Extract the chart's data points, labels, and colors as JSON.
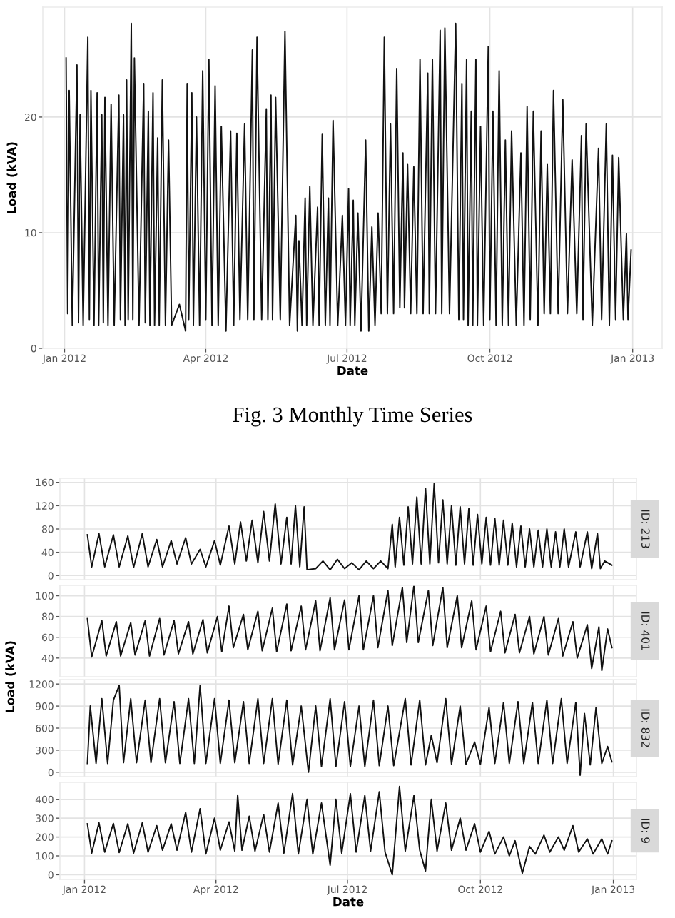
{
  "chart_data": [
    {
      "type": "line",
      "xlabel": "Date",
      "ylabel": "Load (kVA)",
      "annotations": [
        "Fig. 3 Monthly Time Series"
      ],
      "xlim": [
        "2011-12-18",
        "2013-01-20"
      ],
      "ylim": [
        0,
        29.5
      ],
      "yticks": [
        0,
        10,
        20
      ],
      "xticks": [
        {
          "value": "2012-01-01",
          "label": "Jan 2012"
        },
        {
          "value": "2012-04-01",
          "label": "Apr 2012"
        },
        {
          "value": "2012-07-01",
          "label": "Jul 2012"
        },
        {
          "value": "2012-10-01",
          "label": "Oct 2012"
        },
        {
          "value": "2013-01-01",
          "label": "Jan 2013"
        }
      ],
      "grid": true,
      "x": [
        "2012-01-02",
        "2012-01-03",
        "2012-01-04",
        "2012-01-06",
        "2012-01-09",
        "2012-01-10",
        "2012-01-11",
        "2012-01-13",
        "2012-01-16",
        "2012-01-17",
        "2012-01-18",
        "2012-01-20",
        "2012-01-22",
        "2012-01-23",
        "2012-01-25",
        "2012-01-26",
        "2012-01-27",
        "2012-01-29",
        "2012-01-31",
        "2012-02-02",
        "2012-02-05",
        "2012-02-06",
        "2012-02-08",
        "2012-02-09",
        "2012-02-10",
        "2012-02-11",
        "2012-02-13",
        "2012-02-14",
        "2012-02-15",
        "2012-02-18",
        "2012-02-21",
        "2012-02-22",
        "2012-02-24",
        "2012-02-25",
        "2012-02-27",
        "2012-02-28",
        "2012-03-01",
        "2012-03-02",
        "2012-03-04",
        "2012-03-06",
        "2012-03-08",
        "2012-03-10",
        "2012-03-15",
        "2012-03-19",
        "2012-03-20",
        "2012-03-21",
        "2012-03-23",
        "2012-03-24",
        "2012-03-26",
        "2012-03-28",
        "2012-03-30",
        "2012-04-01",
        "2012-04-03",
        "2012-04-05",
        "2012-04-07",
        "2012-04-09",
        "2012-04-11",
        "2012-04-14",
        "2012-04-17",
        "2012-04-19",
        "2012-04-21",
        "2012-04-23",
        "2012-04-26",
        "2012-04-28",
        "2012-05-01",
        "2012-05-02",
        "2012-05-04",
        "2012-05-07",
        "2012-05-10",
        "2012-05-11",
        "2012-05-13",
        "2012-05-14",
        "2012-05-16",
        "2012-05-19",
        "2012-05-22",
        "2012-05-25",
        "2012-05-29",
        "2012-05-30",
        "2012-05-31",
        "2012-06-02",
        "2012-06-04",
        "2012-06-05",
        "2012-06-07",
        "2012-06-09",
        "2012-06-12",
        "2012-06-13",
        "2012-06-15",
        "2012-06-17",
        "2012-06-19",
        "2012-06-20",
        "2012-06-22",
        "2012-06-25",
        "2012-06-28",
        "2012-06-30",
        "2012-07-02",
        "2012-07-03",
        "2012-07-05",
        "2012-07-06",
        "2012-07-08",
        "2012-07-10",
        "2012-07-13",
        "2012-07-15",
        "2012-07-17",
        "2012-07-19",
        "2012-07-21",
        "2012-07-23",
        "2012-07-25",
        "2012-07-27",
        "2012-07-29",
        "2012-07-31",
        "2012-08-02",
        "2012-08-04",
        "2012-08-06",
        "2012-08-07",
        "2012-08-09",
        "2012-08-11",
        "2012-08-13",
        "2012-08-15",
        "2012-08-17",
        "2012-08-19",
        "2012-08-22",
        "2012-08-23",
        "2012-08-25",
        "2012-08-27",
        "2012-08-30",
        "2012-08-31",
        "2012-09-02",
        "2012-09-05",
        "2012-09-09",
        "2012-09-11",
        "2012-09-13",
        "2012-09-14",
        "2012-09-16",
        "2012-09-17",
        "2012-09-19",
        "2012-09-20",
        "2012-09-22",
        "2012-09-23",
        "2012-09-25",
        "2012-09-27",
        "2012-09-30",
        "2012-10-01",
        "2012-10-03",
        "2012-10-05",
        "2012-10-07",
        "2012-10-09",
        "2012-10-11",
        "2012-10-13",
        "2012-10-15",
        "2012-10-18",
        "2012-10-21",
        "2012-10-23",
        "2012-10-25",
        "2012-10-27",
        "2012-10-29",
        "2012-11-01",
        "2012-11-03",
        "2012-11-05",
        "2012-11-07",
        "2012-11-09",
        "2012-11-11",
        "2012-11-14",
        "2012-11-17",
        "2012-11-20",
        "2012-11-23",
        "2012-11-26",
        "2012-11-29",
        "2012-11-30",
        "2012-12-02",
        "2012-12-06",
        "2012-12-10",
        "2012-12-12",
        "2012-12-15",
        "2012-12-17",
        "2012-12-19",
        "2012-12-21",
        "2012-12-23",
        "2012-12-26",
        "2012-12-28",
        "2012-12-29",
        "2012-12-31"
      ],
      "series": [
        {
          "color": "#111111",
          "values": [
            25.1,
            3.0,
            22.3,
            2.0,
            24.5,
            2.2,
            20.2,
            2.0,
            26.9,
            2.5,
            22.3,
            2.0,
            22.1,
            2.0,
            20.2,
            2.2,
            21.7,
            2.0,
            21.1,
            2.0,
            21.9,
            2.5,
            20.2,
            2.0,
            23.2,
            2.5,
            28.1,
            2.5,
            25.1,
            2.0,
            22.9,
            2.2,
            20.5,
            2.0,
            22.1,
            2.0,
            18.2,
            2.0,
            23.2,
            2.0,
            18.0,
            2.0,
            3.8,
            1.5,
            22.9,
            2.5,
            22.1,
            2.0,
            20.0,
            2.0,
            24.0,
            2.5,
            25.0,
            2.0,
            22.7,
            2.0,
            19.2,
            1.5,
            18.8,
            2.0,
            18.6,
            2.5,
            19.4,
            2.5,
            25.8,
            2.5,
            26.9,
            2.5,
            20.7,
            2.5,
            21.9,
            2.5,
            21.7,
            2.5,
            27.4,
            2.0,
            11.5,
            1.5,
            9.3,
            2.0,
            13.0,
            2.0,
            14.0,
            2.0,
            12.2,
            2.0,
            18.5,
            2.0,
            13.0,
            2.0,
            19.7,
            2.0,
            11.5,
            2.0,
            13.8,
            2.0,
            12.8,
            2.0,
            11.7,
            1.5,
            18.0,
            1.5,
            10.5,
            2.0,
            11.7,
            3.0,
            26.9,
            3.0,
            19.4,
            3.0,
            24.2,
            3.5,
            16.9,
            3.5,
            15.9,
            3.0,
            15.7,
            3.0,
            25.0,
            3.0,
            23.8,
            3.0,
            25.0,
            3.0,
            27.5,
            3.0,
            27.7,
            3.0,
            28.1,
            2.5,
            22.9,
            2.5,
            25.0,
            2.0,
            20.5,
            2.0,
            25.0,
            2.0,
            19.2,
            2.0,
            26.1,
            2.5,
            20.5,
            2.0,
            24.0,
            2.0,
            18.0,
            2.0,
            18.8,
            2.0,
            16.9,
            2.0,
            20.9,
            2.5,
            20.5,
            2.0,
            18.8,
            3.0,
            15.9,
            3.0,
            22.3,
            3.0,
            21.5,
            3.0,
            16.3,
            3.0,
            18.4,
            2.5,
            19.4,
            2.0,
            17.3,
            2.5,
            19.4,
            2.0,
            16.7,
            2.5,
            16.5,
            2.5,
            9.9,
            2.5,
            8.5
          ]
        }
      ]
    },
    {
      "type": "line",
      "title": "ID: 213",
      "tick_labels": "y",
      "xlim": [
        "2011-12-15",
        "2013-01-17"
      ],
      "ylim": [
        -7,
        167
      ],
      "yticks": [
        0,
        40,
        80,
        120,
        160
      ],
      "xticks": [
        {
          "value": "2012-01-01",
          "label": null
        },
        {
          "value": "2012-04-01",
          "label": null
        },
        {
          "value": "2012-07-01",
          "label": null
        },
        {
          "value": "2012-10-01",
          "label": null
        },
        {
          "value": "2013-01-01",
          "label": null
        }
      ],
      "grid": true,
      "x": [
        "2012-01-03",
        "2012-01-06",
        "2012-01-11",
        "2012-01-15",
        "2012-01-21",
        "2012-01-25",
        "2012-01-31",
        "2012-02-04",
        "2012-02-10",
        "2012-02-14",
        "2012-02-20",
        "2012-02-24",
        "2012-03-01",
        "2012-03-05",
        "2012-03-11",
        "2012-03-15",
        "2012-03-21",
        "2012-03-25",
        "2012-03-31",
        "2012-04-04",
        "2012-04-10",
        "2012-04-14",
        "2012-04-18",
        "2012-04-22",
        "2012-04-26",
        "2012-04-30",
        "2012-05-04",
        "2012-05-08",
        "2012-05-12",
        "2012-05-16",
        "2012-05-20",
        "2012-05-23",
        "2012-05-26",
        "2012-05-29",
        "2012-06-01",
        "2012-06-03",
        "2012-06-09",
        "2012-06-14",
        "2012-06-19",
        "2012-06-24",
        "2012-06-29",
        "2012-07-04",
        "2012-07-09",
        "2012-07-14",
        "2012-07-19",
        "2012-07-24",
        "2012-07-29",
        "2012-08-01",
        "2012-08-03",
        "2012-08-06",
        "2012-08-09",
        "2012-08-12",
        "2012-08-15",
        "2012-08-18",
        "2012-08-21",
        "2012-08-24",
        "2012-08-27",
        "2012-08-30",
        "2012-09-02",
        "2012-09-05",
        "2012-09-08",
        "2012-09-11",
        "2012-09-14",
        "2012-09-17",
        "2012-09-20",
        "2012-09-23",
        "2012-09-26",
        "2012-09-29",
        "2012-10-02",
        "2012-10-05",
        "2012-10-08",
        "2012-10-11",
        "2012-10-14",
        "2012-10-17",
        "2012-10-20",
        "2012-10-23",
        "2012-10-26",
        "2012-10-29",
        "2012-11-01",
        "2012-11-04",
        "2012-11-07",
        "2012-11-10",
        "2012-11-13",
        "2012-11-16",
        "2012-11-19",
        "2012-11-22",
        "2012-11-25",
        "2012-11-28",
        "2012-12-01",
        "2012-12-06",
        "2012-12-09",
        "2012-12-14",
        "2012-12-17",
        "2012-12-21",
        "2012-12-23",
        "2012-12-26",
        "2012-12-31"
      ],
      "series": [
        {
          "color": "#111111",
          "values": [
            70,
            15,
            72,
            15,
            70,
            15,
            68,
            14,
            72,
            15,
            62,
            15,
            60,
            20,
            65,
            20,
            45,
            15,
            60,
            18,
            85,
            20,
            92,
            25,
            95,
            22,
            110,
            25,
            123,
            20,
            100,
            20,
            120,
            15,
            118,
            10,
            12,
            25,
            10,
            28,
            12,
            22,
            10,
            25,
            12,
            25,
            12,
            88,
            15,
            100,
            18,
            118,
            20,
            135,
            20,
            150,
            20,
            158,
            22,
            130,
            20,
            120,
            18,
            118,
            20,
            115,
            18,
            105,
            20,
            100,
            18,
            98,
            18,
            95,
            18,
            90,
            15,
            85,
            15,
            80,
            15,
            78,
            15,
            80,
            15,
            75,
            15,
            80,
            15,
            75,
            15,
            75,
            12,
            72,
            12,
            25,
            18
          ]
        }
      ]
    },
    {
      "type": "line",
      "title": "ID: 401",
      "ylabel": "Load (kVA)",
      "tick_labels": "y",
      "xlim": [
        "2011-12-15",
        "2013-01-17"
      ],
      "ylim": [
        22,
        110
      ],
      "yticks": [
        40,
        60,
        80,
        100
      ],
      "xticks": [
        {
          "value": "2012-01-01",
          "label": null
        },
        {
          "value": "2012-04-01",
          "label": null
        },
        {
          "value": "2012-07-01",
          "label": null
        },
        {
          "value": "2012-10-01",
          "label": null
        },
        {
          "value": "2013-01-01",
          "label": null
        }
      ],
      "grid": true,
      "x": [
        "2012-01-03",
        "2012-01-06",
        "2012-01-13",
        "2012-01-16",
        "2012-01-23",
        "2012-01-26",
        "2012-02-02",
        "2012-02-05",
        "2012-02-12",
        "2012-02-15",
        "2012-02-22",
        "2012-02-25",
        "2012-03-03",
        "2012-03-06",
        "2012-03-13",
        "2012-03-16",
        "2012-03-23",
        "2012-03-26",
        "2012-04-02",
        "2012-04-05",
        "2012-04-10",
        "2012-04-13",
        "2012-04-20",
        "2012-04-23",
        "2012-04-30",
        "2012-05-03",
        "2012-05-10",
        "2012-05-13",
        "2012-05-20",
        "2012-05-23",
        "2012-05-30",
        "2012-06-02",
        "2012-06-09",
        "2012-06-12",
        "2012-06-19",
        "2012-06-22",
        "2012-06-29",
        "2012-07-02",
        "2012-07-09",
        "2012-07-12",
        "2012-07-19",
        "2012-07-22",
        "2012-07-29",
        "2012-08-01",
        "2012-08-08",
        "2012-08-11",
        "2012-08-16",
        "2012-08-19",
        "2012-08-26",
        "2012-08-29",
        "2012-09-05",
        "2012-09-08",
        "2012-09-15",
        "2012-09-18",
        "2012-09-25",
        "2012-09-28",
        "2012-10-05",
        "2012-10-08",
        "2012-10-15",
        "2012-10-18",
        "2012-10-25",
        "2012-10-28",
        "2012-11-04",
        "2012-11-07",
        "2012-11-14",
        "2012-11-17",
        "2012-11-24",
        "2012-11-27",
        "2012-12-04",
        "2012-12-07",
        "2012-12-14",
        "2012-12-17",
        "2012-12-22",
        "2012-12-24",
        "2012-12-28",
        "2012-12-31"
      ],
      "series": [
        {
          "color": "#111111",
          "values": [
            78,
            41,
            76,
            42,
            75,
            42,
            74,
            43,
            76,
            42,
            78,
            43,
            76,
            44,
            75,
            44,
            77,
            45,
            80,
            46,
            90,
            50,
            82,
            48,
            85,
            47,
            88,
            46,
            92,
            47,
            90,
            48,
            95,
            47,
            98,
            48,
            96,
            48,
            100,
            48,
            100,
            50,
            105,
            52,
            108,
            55,
            110,
            55,
            105,
            52,
            108,
            50,
            100,
            50,
            95,
            48,
            90,
            46,
            85,
            45,
            82,
            45,
            80,
            44,
            80,
            43,
            78,
            42,
            75,
            40,
            72,
            30,
            70,
            28,
            68,
            50
          ]
        }
      ]
    },
    {
      "type": "line",
      "title": "ID: 832",
      "tick_labels": "y",
      "xlim": [
        "2011-12-15",
        "2013-01-17"
      ],
      "ylim": [
        -60,
        1260
      ],
      "yticks": [
        0,
        300,
        600,
        900,
        1200
      ],
      "xticks": [
        {
          "value": "2012-01-01",
          "label": null
        },
        {
          "value": "2012-04-01",
          "label": null
        },
        {
          "value": "2012-07-01",
          "label": null
        },
        {
          "value": "2012-10-01",
          "label": null
        },
        {
          "value": "2013-01-01",
          "label": null
        }
      ],
      "grid": true,
      "x": [
        "2012-01-03",
        "2012-01-05",
        "2012-01-09",
        "2012-01-13",
        "2012-01-17",
        "2012-01-21",
        "2012-01-25",
        "2012-01-28",
        "2012-02-02",
        "2012-02-06",
        "2012-02-12",
        "2012-02-16",
        "2012-02-22",
        "2012-02-26",
        "2012-03-03",
        "2012-03-07",
        "2012-03-13",
        "2012-03-17",
        "2012-03-21",
        "2012-03-25",
        "2012-03-31",
        "2012-04-04",
        "2012-04-10",
        "2012-04-14",
        "2012-04-20",
        "2012-04-24",
        "2012-04-30",
        "2012-05-04",
        "2012-05-10",
        "2012-05-14",
        "2012-05-20",
        "2012-05-24",
        "2012-05-30",
        "2012-06-04",
        "2012-06-09",
        "2012-06-13",
        "2012-06-19",
        "2012-06-23",
        "2012-06-29",
        "2012-07-03",
        "2012-07-09",
        "2012-07-13",
        "2012-07-19",
        "2012-07-23",
        "2012-07-29",
        "2012-08-02",
        "2012-08-10",
        "2012-08-14",
        "2012-08-20",
        "2012-08-24",
        "2012-08-28",
        "2012-09-01",
        "2012-09-07",
        "2012-09-11",
        "2012-09-17",
        "2012-09-21",
        "2012-09-27",
        "2012-10-01",
        "2012-10-07",
        "2012-10-11",
        "2012-10-17",
        "2012-10-21",
        "2012-10-27",
        "2012-10-31",
        "2012-11-06",
        "2012-11-10",
        "2012-11-16",
        "2012-11-20",
        "2012-11-26",
        "2012-11-30",
        "2012-12-06",
        "2012-12-09",
        "2012-12-12",
        "2012-12-16",
        "2012-12-20",
        "2012-12-24",
        "2012-12-28",
        "2012-12-31"
      ],
      "series": [
        {
          "color": "#111111",
          "values": [
            120,
            900,
            120,
            1000,
            120,
            980,
            1180,
            130,
            1000,
            130,
            980,
            130,
            1000,
            130,
            960,
            120,
            1000,
            120,
            1180,
            120,
            1000,
            120,
            980,
            130,
            960,
            120,
            1000,
            120,
            1000,
            110,
            980,
            100,
            900,
            0,
            900,
            80,
            1000,
            80,
            960,
            80,
            900,
            80,
            980,
            90,
            900,
            90,
            1000,
            100,
            980,
            100,
            500,
            130,
            1000,
            110,
            900,
            110,
            410,
            110,
            880,
            120,
            950,
            120,
            960,
            120,
            950,
            120,
            980,
            120,
            1000,
            120,
            950,
            -40,
            800,
            100,
            880,
            120,
            350,
            140
          ]
        }
      ]
    },
    {
      "type": "line",
      "title": "ID: 9",
      "xlabel": "Date",
      "xlim": [
        "2011-12-15",
        "2013-01-17"
      ],
      "ylim": [
        -25,
        490
      ],
      "yticks": [
        0,
        100,
        200,
        300,
        400
      ],
      "xticks": [
        {
          "value": "2012-01-01",
          "label": "Jan 2012"
        },
        {
          "value": "2012-04-01",
          "label": "Apr 2012"
        },
        {
          "value": "2012-07-01",
          "label": "Jul 2012"
        },
        {
          "value": "2012-10-01",
          "label": "Oct 2012"
        },
        {
          "value": "2013-01-01",
          "label": "Jan 2013"
        }
      ],
      "grid": true,
      "x": [
        "2012-01-03",
        "2012-01-06",
        "2012-01-11",
        "2012-01-15",
        "2012-01-21",
        "2012-01-25",
        "2012-01-31",
        "2012-02-04",
        "2012-02-10",
        "2012-02-14",
        "2012-02-20",
        "2012-02-24",
        "2012-03-01",
        "2012-03-05",
        "2012-03-11",
        "2012-03-15",
        "2012-03-21",
        "2012-03-25",
        "2012-03-31",
        "2012-04-04",
        "2012-04-10",
        "2012-04-14",
        "2012-04-16",
        "2012-04-19",
        "2012-04-24",
        "2012-04-28",
        "2012-05-04",
        "2012-05-08",
        "2012-05-14",
        "2012-05-18",
        "2012-05-24",
        "2012-05-28",
        "2012-06-03",
        "2012-06-07",
        "2012-06-13",
        "2012-06-19",
        "2012-06-23",
        "2012-06-27",
        "2012-07-03",
        "2012-07-07",
        "2012-07-13",
        "2012-07-17",
        "2012-07-23",
        "2012-07-27",
        "2012-08-01",
        "2012-08-06",
        "2012-08-10",
        "2012-08-16",
        "2012-08-20",
        "2012-08-24",
        "2012-08-28",
        "2012-09-01",
        "2012-09-07",
        "2012-09-11",
        "2012-09-17",
        "2012-09-21",
        "2012-09-27",
        "2012-10-01",
        "2012-10-07",
        "2012-10-11",
        "2012-10-17",
        "2012-10-21",
        "2012-10-25",
        "2012-10-30",
        "2012-11-04",
        "2012-11-08",
        "2012-11-14",
        "2012-11-18",
        "2012-11-24",
        "2012-11-28",
        "2012-12-04",
        "2012-12-08",
        "2012-12-14",
        "2012-12-18",
        "2012-12-24",
        "2012-12-28",
        "2012-12-31"
      ],
      "series": [
        {
          "color": "#111111",
          "values": [
            270,
            115,
            275,
            120,
            272,
            118,
            270,
            115,
            275,
            120,
            260,
            130,
            270,
            130,
            330,
            120,
            350,
            110,
            300,
            130,
            280,
            125,
            423,
            130,
            310,
            125,
            320,
            120,
            380,
            115,
            430,
            110,
            400,
            110,
            380,
            50,
            400,
            115,
            430,
            120,
            420,
            125,
            440,
            120,
            0,
            468,
            125,
            420,
            130,
            20,
            400,
            125,
            380,
            130,
            300,
            130,
            270,
            120,
            230,
            110,
            200,
            100,
            180,
            8,
            150,
            110,
            210,
            120,
            200,
            130,
            260,
            120,
            190,
            110,
            190,
            110,
            180
          ]
        }
      ]
    }
  ]
}
